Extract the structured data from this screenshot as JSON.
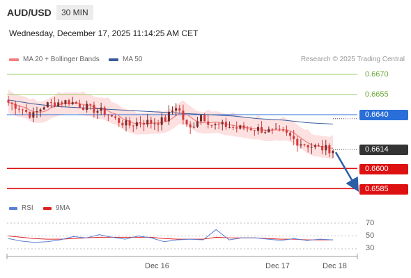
{
  "header": {
    "symbol": "AUD/USD",
    "timeframe": "30 MIN",
    "datetime": "Wednesday, December 17, 2025 11:14:25 AM CET"
  },
  "legend": {
    "ma20_label": "MA 20 + Bollinger Bands",
    "ma50_label": "MA 50",
    "credit": "Research © 2025 Trading Central"
  },
  "colors": {
    "ma20": "#f08080",
    "band": "#fde0e0",
    "ma50": "#3a5a9a",
    "candle_up": "#7a2a2a",
    "candle_down": "#d43a3a",
    "level_green": "#9acd6a",
    "level_blue": "#2a6fd9",
    "level_red": "#dd1111",
    "rsi": "#5a7fd6",
    "rsi_ma": "#dd2222",
    "arrow": "#2a5fa8"
  },
  "price_tags": {
    "r2": "0.6670",
    "r1": "0.6655",
    "pivot": "0.6640",
    "last": "0.6614",
    "s1": "0.6600",
    "s2": "0.6585"
  },
  "rsi_panel": {
    "rsi_label": "RSI",
    "ma_label": "9MA",
    "ticks": [
      "70",
      "50",
      "30"
    ]
  },
  "x_axis": {
    "labels": [
      "Dec 16",
      "Dec 17",
      "Dec 18"
    ]
  },
  "chart_data": {
    "type": "candlestick",
    "symbol": "AUD/USD",
    "timeframe": "30 MIN",
    "y_min": 0.6585,
    "y_max": 0.6675,
    "levels": [
      {
        "label": "0.6670",
        "value": 0.667,
        "kind": "resistance"
      },
      {
        "label": "0.6655",
        "value": 0.6655,
        "kind": "resistance"
      },
      {
        "label": "0.6640",
        "value": 0.664,
        "kind": "pivot"
      },
      {
        "label": "0.6614",
        "value": 0.6614,
        "kind": "last"
      },
      {
        "label": "0.6600",
        "value": 0.66,
        "kind": "support"
      },
      {
        "label": "0.6585",
        "value": 0.6585,
        "kind": "support"
      }
    ],
    "close_anchors": [
      0.6649,
      0.6645,
      0.6639,
      0.6647,
      0.6649,
      0.665,
      0.6647,
      0.6644,
      0.6642,
      0.6636,
      0.6632,
      0.6635,
      0.6634,
      0.6636,
      0.6647,
      0.6628,
      0.664,
      0.6632,
      0.6632,
      0.663,
      0.663,
      0.6629,
      0.6627,
      0.6626,
      0.662,
      0.6617,
      0.6615,
      0.6614
    ],
    "ma50": [
      0.6651,
      0.6648,
      0.6646,
      0.6645,
      0.6644,
      0.6643,
      0.6642,
      0.6641,
      0.664,
      0.6639,
      0.6637,
      0.6636,
      0.6634,
      0.6633
    ],
    "rsi": [
      46,
      42,
      40,
      41,
      44,
      49,
      47,
      52,
      48,
      45,
      50,
      47,
      41,
      44,
      45,
      44,
      60,
      44,
      47,
      47,
      45,
      43,
      46,
      43,
      45,
      44
    ],
    "rsi_ma": [
      50,
      48,
      46,
      45,
      45,
      46,
      47,
      48,
      48,
      48,
      48,
      48,
      46,
      45,
      45,
      45,
      48,
      47,
      47,
      47,
      46,
      45,
      45,
      44,
      44,
      44
    ],
    "rsi_ticks": [
      70,
      50,
      30
    ],
    "x_labels": [
      "Dec 16",
      "Dec 17",
      "Dec 18"
    ]
  }
}
